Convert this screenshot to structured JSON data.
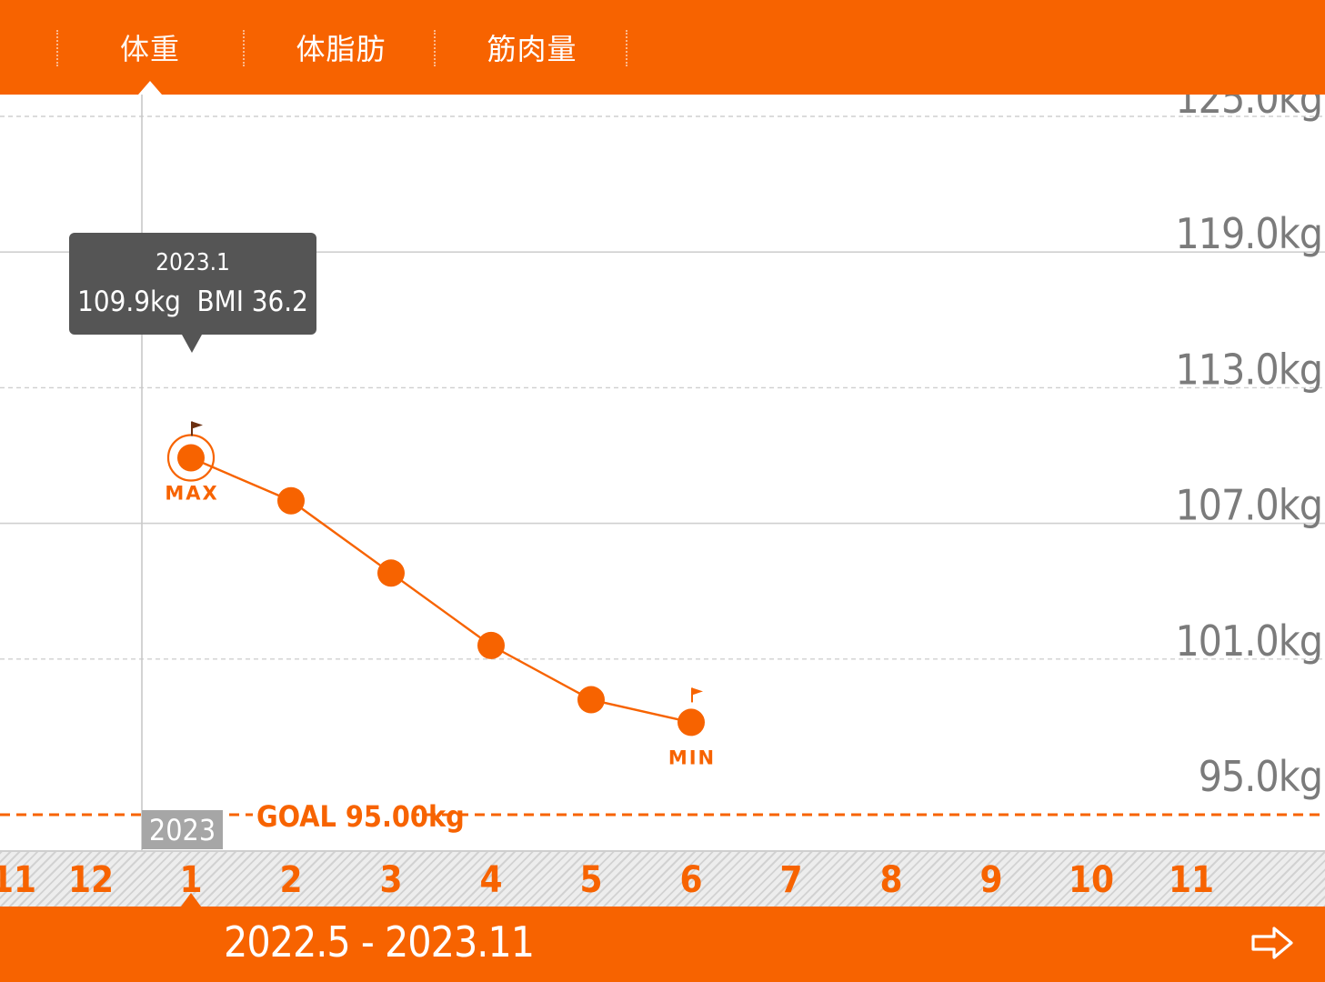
{
  "tabs": [
    {
      "label": "体重",
      "active": true
    },
    {
      "label": "体脂肪",
      "active": false
    },
    {
      "label": "筋肉量",
      "active": false
    }
  ],
  "chart_data": {
    "type": "line",
    "unit": "kg",
    "y_ticks": [
      "125.0kg",
      "119.0kg",
      "113.0kg",
      "107.0kg",
      "101.0kg",
      "95.0kg"
    ],
    "ylim": [
      95,
      125
    ],
    "x_categories": [
      "11",
      "12",
      "1",
      "2",
      "3",
      "4",
      "5",
      "6",
      "7",
      "8",
      "9",
      "10",
      "11"
    ],
    "series": [
      {
        "points": [
          {
            "x": "1",
            "y": 109.9
          },
          {
            "x": "2",
            "y": 108.0
          },
          {
            "x": "3",
            "y": 104.8
          },
          {
            "x": "4",
            "y": 101.6
          },
          {
            "x": "5",
            "y": 99.2
          },
          {
            "x": "6",
            "y": 98.2
          }
        ]
      }
    ],
    "max_label": "MAX",
    "min_label": "MIN",
    "goal": {
      "label": "GOAL 95.00kg",
      "value": 95.0
    },
    "colors": {
      "line": "#f76300",
      "grid": "#cfcfcf",
      "axis_text": "#7b7b7b"
    }
  },
  "tooltip": {
    "date": "2023.1",
    "values": "109.9kg  BMI 36.2"
  },
  "year_tag": "2023",
  "range": {
    "label": "2022.5 - 2023.11",
    "next_icon": "arrow-right-icon"
  },
  "colors": {
    "brand": "#f76300"
  }
}
